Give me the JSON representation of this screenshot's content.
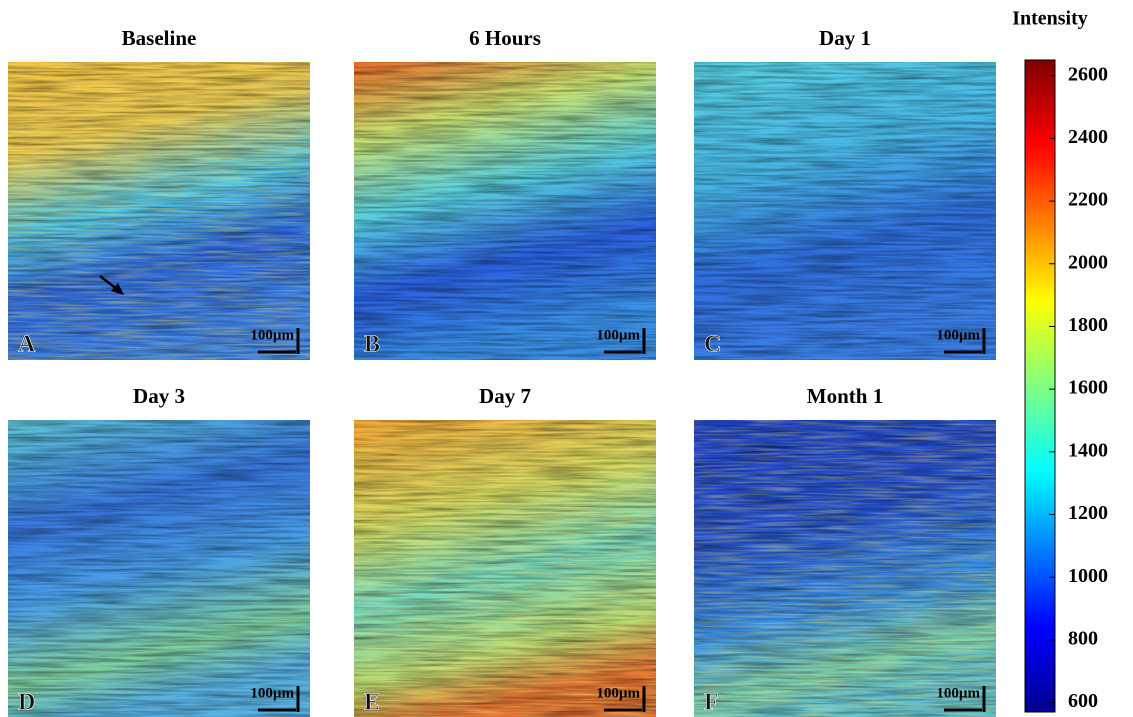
{
  "panels": [
    {
      "title": "Baseline",
      "letter": "A",
      "scale_label": "100µm"
    },
    {
      "title": "6 Hours",
      "letter": "B",
      "scale_label": "100µm"
    },
    {
      "title": "Day 1",
      "letter": "C",
      "scale_label": "100µm"
    },
    {
      "title": "Day 3",
      "letter": "D",
      "scale_label": "100µm"
    },
    {
      "title": "Day 7",
      "letter": "E",
      "scale_label": "100µm"
    },
    {
      "title": "Month 1",
      "letter": "F",
      "scale_label": "100µm"
    }
  ],
  "colorbar": {
    "title": "Intensity",
    "lim": [
      570,
      2650
    ],
    "ticks": [
      600,
      800,
      1000,
      1200,
      1400,
      1600,
      1800,
      2000,
      2200,
      2400,
      2600
    ]
  }
}
